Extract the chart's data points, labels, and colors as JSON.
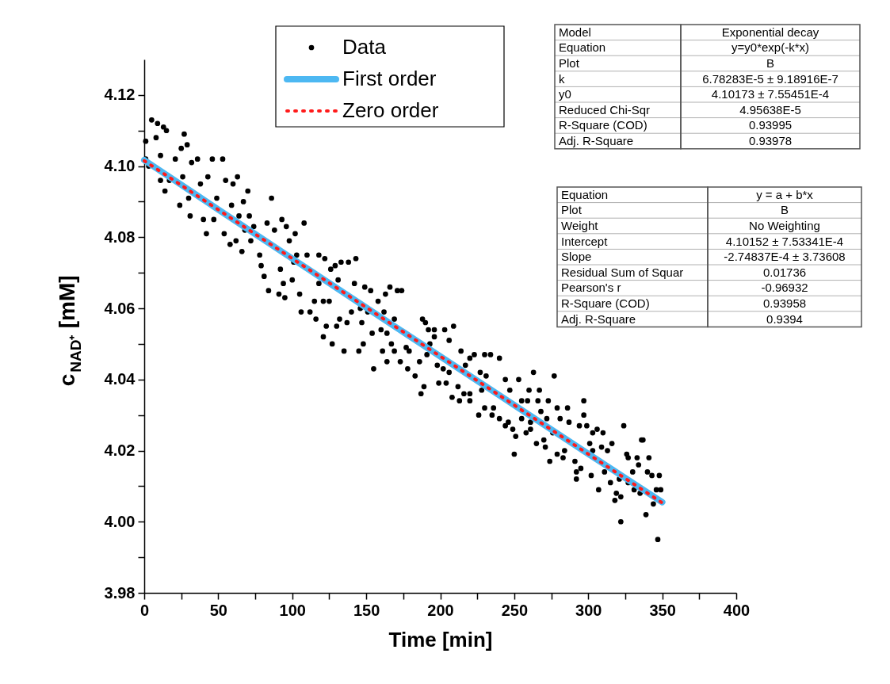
{
  "chart_data": {
    "type": "scatter",
    "xlabel": "Time [min]",
    "ylabel": "c$_{NAD⁺}$ [mM]",
    "xlim": [
      0,
      400
    ],
    "xticks": [
      0,
      {
        "value": 25,
        "label": null
      },
      50,
      {
        "value": 75,
        "label": null
      },
      100,
      {
        "value": 125,
        "label": null
      },
      150,
      {
        "value": 175,
        "label": null
      },
      200,
      {
        "value": 225,
        "label": null
      },
      250,
      {
        "value": 275,
        "label": null
      },
      300,
      {
        "value": 325,
        "label": null
      },
      350,
      {
        "value": 375,
        "label": null
      },
      400
    ],
    "ylim": [
      3.98,
      4.13
    ],
    "yticks": [
      {
        "value": 3.98,
        "label": "3.98"
      },
      {
        "value": 3.99,
        "label": null
      },
      {
        "value": 4.0,
        "label": "4.00"
      },
      {
        "value": 4.01,
        "label": null
      },
      {
        "value": 4.02,
        "label": "4.02"
      },
      {
        "value": 4.03,
        "label": null
      },
      {
        "value": 4.04,
        "label": "4.04"
      },
      {
        "value": 4.05,
        "label": null
      },
      {
        "value": 4.06,
        "label": "4.06"
      },
      {
        "value": 4.07,
        "label": null
      },
      {
        "value": 4.08,
        "label": "4.08"
      },
      {
        "value": 4.09,
        "label": null
      },
      {
        "value": 4.1,
        "label": "4.10"
      },
      {
        "value": 4.11,
        "label": null
      },
      {
        "value": 4.12,
        "label": "4.12"
      }
    ],
    "grid": false,
    "legend": "top",
    "series": [
      {
        "name": "Data",
        "marker": "circle",
        "color": "#000000",
        "x": [
          1,
          5,
          9,
          13,
          15,
          8,
          1,
          3,
          11,
          27,
          25,
          29,
          21,
          17,
          14,
          11,
          24,
          32,
          36,
          26,
          30,
          31,
          38,
          40,
          42,
          43,
          46,
          49,
          47,
          53,
          55,
          60,
          63,
          59,
          54,
          58,
          62,
          66,
          64,
          67,
          70,
          71,
          68,
          72,
          78,
          74,
          83,
          86,
          88,
          93,
          96,
          102,
          108,
          98,
          79,
          81,
          84,
          91,
          95,
          92,
          94,
          100,
          101,
          103,
          110,
          118,
          122,
          126,
          129,
          133,
          138,
          143,
          105,
          106,
          112,
          116,
          115,
          121,
          125,
          121,
          123,
          127,
          130,
          132,
          131,
          137,
          140,
          146,
          147,
          148,
          142,
          149,
          153,
          118,
          158,
          163,
          166,
          171,
          174,
          151,
          162,
          169,
          154,
          160,
          164,
          135,
          145,
          155,
          161,
          164,
          167,
          169,
          173,
          177,
          179,
          178,
          183,
          186,
          191,
          187,
          189,
          188,
          190,
          192,
          196,
          193,
          196,
          203,
          209,
          206,
          198,
          202,
          199,
          204,
          206,
          208,
          212,
          213,
          214,
          217,
          220,
          223,
          227,
          216,
          220,
          220,
          228,
          230,
          234,
          240,
          231,
          244,
          247,
          253,
          263,
          260,
          267,
          226,
          230,
          236,
          235,
          240,
          246,
          244,
          249,
          251,
          250,
          255,
          259,
          266,
          273,
          255,
          258,
          261,
          268,
          272,
          265,
          270,
          271,
          274,
          276,
          261,
          277,
          279,
          281,
          279,
          283,
          287,
          286,
          284,
          291,
          294,
          292,
          295,
          292,
          297,
          297,
          299,
          301,
          303,
          302,
          303,
          306,
          310,
          309,
          307,
          313,
          316,
          311,
          315,
          319,
          322,
          321,
          318,
          322,
          324,
          326,
          327,
          330,
          327,
          331,
          333,
          334,
          336,
          337,
          335,
          341,
          340,
          343,
          348,
          349,
          346,
          344,
          339,
          347
        ],
        "values": [
          4.107,
          4.113,
          4.112,
          4.111,
          4.11,
          4.108,
          4.102,
          4.1,
          4.103,
          4.109,
          4.105,
          4.106,
          4.102,
          4.096,
          4.093,
          4.096,
          4.089,
          4.101,
          4.102,
          4.097,
          4.091,
          4.086,
          4.095,
          4.085,
          4.081,
          4.097,
          4.102,
          4.091,
          4.085,
          4.102,
          4.096,
          4.095,
          4.097,
          4.089,
          4.081,
          4.078,
          4.079,
          4.076,
          4.086,
          4.09,
          4.093,
          4.086,
          4.082,
          4.079,
          4.075,
          4.083,
          4.084,
          4.091,
          4.082,
          4.085,
          4.083,
          4.081,
          4.084,
          4.079,
          4.072,
          4.069,
          4.065,
          4.064,
          4.063,
          4.071,
          4.067,
          4.068,
          4.073,
          4.075,
          4.075,
          4.075,
          4.074,
          4.071,
          4.072,
          4.073,
          4.073,
          4.074,
          4.064,
          4.059,
          4.059,
          4.057,
          4.062,
          4.062,
          4.062,
          4.052,
          4.055,
          4.05,
          4.055,
          4.057,
          4.068,
          4.056,
          4.059,
          4.06,
          4.056,
          4.05,
          4.067,
          4.066,
          4.065,
          4.067,
          4.062,
          4.064,
          4.066,
          4.065,
          4.065,
          4.059,
          4.059,
          4.057,
          4.053,
          4.054,
          4.053,
          4.048,
          4.048,
          4.043,
          4.048,
          4.045,
          4.05,
          4.048,
          4.045,
          4.049,
          4.048,
          4.043,
          4.041,
          4.045,
          4.047,
          4.036,
          4.038,
          4.057,
          4.056,
          4.054,
          4.054,
          4.05,
          4.052,
          4.054,
          4.055,
          4.051,
          4.044,
          4.043,
          4.039,
          4.039,
          4.042,
          4.035,
          4.038,
          4.034,
          4.048,
          4.044,
          4.046,
          4.047,
          4.042,
          4.036,
          4.036,
          4.034,
          4.037,
          4.047,
          4.047,
          4.046,
          4.041,
          4.04,
          4.037,
          4.04,
          4.042,
          4.037,
          4.037,
          4.03,
          4.032,
          4.032,
          4.03,
          4.029,
          4.028,
          4.027,
          4.026,
          4.024,
          4.019,
          4.034,
          4.034,
          4.034,
          4.034,
          4.029,
          4.025,
          4.028,
          4.031,
          4.029,
          4.022,
          4.023,
          4.021,
          4.017,
          4.025,
          4.026,
          4.041,
          4.032,
          4.029,
          4.019,
          4.018,
          4.028,
          4.032,
          4.02,
          4.017,
          4.027,
          4.014,
          4.015,
          4.012,
          4.034,
          4.03,
          4.027,
          4.022,
          4.025,
          4.013,
          4.02,
          4.026,
          4.025,
          4.021,
          4.009,
          4.02,
          4.022,
          4.014,
          4.011,
          4.008,
          4.007,
          4.012,
          4.006,
          4.0,
          4.027,
          4.019,
          4.018,
          4.014,
          4.011,
          4.009,
          4.018,
          4.016,
          4.023,
          4.023,
          4.008,
          4.018,
          4.014,
          4.013,
          4.013,
          4.009,
          4.009,
          4.005,
          4.002,
          3.995
        ]
      },
      {
        "name": "First order",
        "type": "line",
        "color": "#4db8f2",
        "x": [
          0,
          50,
          100,
          150,
          200,
          250,
          300,
          350
        ],
        "values": [
          4.1017,
          4.0878,
          4.074,
          4.0602,
          4.0465,
          4.0328,
          4.0191,
          4.0055
        ]
      },
      {
        "name": "Zero order",
        "type": "line",
        "color": "#ff1a1a",
        "line_style": "dotted",
        "x": [
          0,
          350
        ],
        "values": [
          4.1015,
          4.0053
        ]
      }
    ],
    "annotations": [
      "Model",
      "Exponential decay",
      "Equation",
      "y=y0*exp(-k*x)",
      "Plot",
      "B",
      "k",
      "6.78283E-5 ± 9.18916E-7",
      "y0",
      "4.10173 ± 7.55451E-4",
      "Reduced Chi-Sqr",
      "4.95638E-5",
      "R-Square (COD)",
      "0.93995",
      "Adj. R-Square",
      "0.93978",
      "Equation",
      "y = a + b*x",
      "Plot",
      "B",
      "Weight",
      "No Weighting",
      "Intercept",
      "4.10152 ± 7.53341E-4",
      "Slope",
      "-2.74837E-4 ± 3.73608",
      "Residual Sum of Squar",
      "0.01736",
      "Pearson's r",
      "-0.96932",
      "R-Square (COD)",
      "0.93958",
      "Adj. R-Square",
      "0.9394"
    ]
  }
}
